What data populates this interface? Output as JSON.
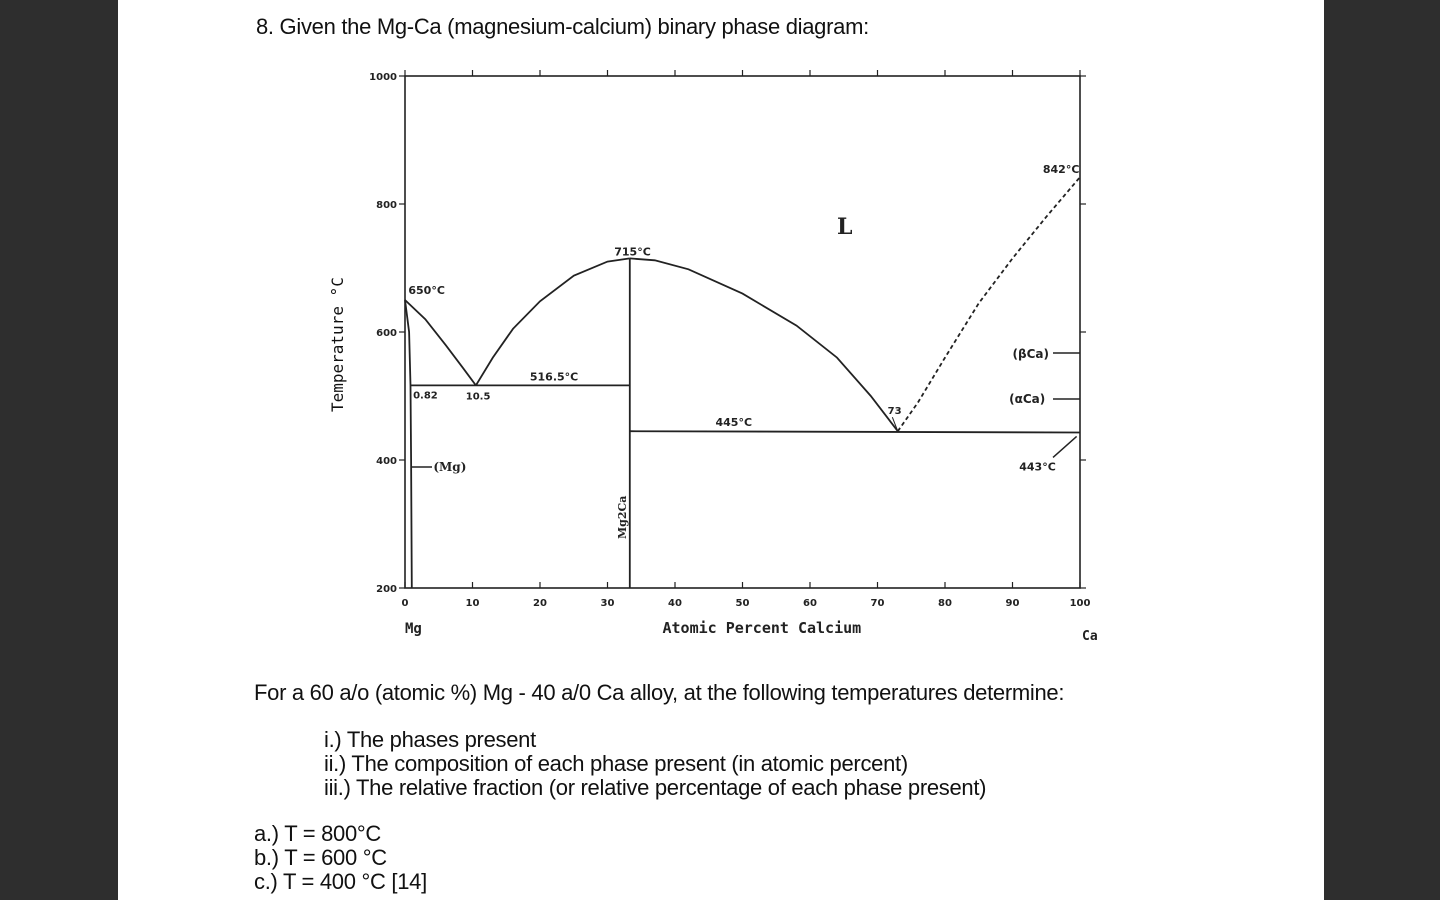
{
  "question": {
    "title": "8. Given the Mg-Ca (magnesium-calcium) binary phase diagram:",
    "prompt": "For a 60 a/o (atomic %) Mg - 40 a/0 Ca alloy, at the following temperatures determine:",
    "subparts": [
      "i.) The phases present",
      "ii.) The composition of each phase present (in atomic percent)",
      "iii.) The relative fraction (or relative percentage of each phase present)"
    ],
    "cases": [
      "a.) T = 800°C",
      "b.) T = 600 °C",
      "c.) T =  400 °C [14]"
    ]
  },
  "chart_data": {
    "type": "line",
    "xlabel": "Atomic Percent Calcium",
    "ylabel": "Temperature °C",
    "xlim": [
      0,
      100
    ],
    "ylim": [
      200,
      1000
    ],
    "xticks": [
      "0",
      "10",
      "20",
      "30",
      "40",
      "50",
      "60",
      "70",
      "80",
      "90",
      "100"
    ],
    "yticks": [
      "200",
      "400",
      "600",
      "800",
      "1000"
    ],
    "end_labels": {
      "left": "Mg",
      "right": "Ca"
    },
    "series": [
      {
        "id": "liquidus-mg",
        "style": "solid",
        "points": [
          [
            0,
            650
          ],
          [
            3,
            620
          ],
          [
            6,
            580
          ],
          [
            8.5,
            545
          ],
          [
            10.5,
            516.5
          ]
        ]
      },
      {
        "id": "liquidus-mg2ca-left",
        "style": "solid",
        "points": [
          [
            10.5,
            516.5
          ],
          [
            13,
            560
          ],
          [
            16,
            605
          ],
          [
            20,
            648
          ],
          [
            25,
            688
          ],
          [
            30,
            710
          ],
          [
            33.3,
            715
          ]
        ]
      },
      {
        "id": "liquidus-mg2ca-right",
        "style": "solid",
        "points": [
          [
            33.3,
            715
          ],
          [
            37,
            712
          ],
          [
            42,
            698
          ],
          [
            50,
            660
          ],
          [
            58,
            610
          ],
          [
            64,
            560
          ],
          [
            69,
            500
          ],
          [
            73,
            445
          ]
        ]
      },
      {
        "id": "liquidus-ca",
        "style": "dashed",
        "points": [
          [
            73,
            445
          ],
          [
            76,
            490
          ],
          [
            80,
            560
          ],
          [
            85,
            645
          ],
          [
            90,
            715
          ],
          [
            95,
            780
          ],
          [
            100,
            842
          ]
        ]
      },
      {
        "id": "mg2ca-line",
        "style": "solid",
        "points": [
          [
            33.3,
            200
          ],
          [
            33.3,
            715
          ]
        ]
      },
      {
        "id": "eutectic-516",
        "style": "solid",
        "points": [
          [
            0.82,
            516.5
          ],
          [
            33.3,
            516.5
          ]
        ]
      },
      {
        "id": "eutectic-445",
        "style": "solid",
        "points": [
          [
            33.3,
            445
          ],
          [
            100,
            443
          ]
        ]
      },
      {
        "id": "mg-solvus",
        "style": "solid",
        "points": [
          [
            0,
            650
          ],
          [
            0.6,
            600
          ],
          [
            0.82,
            516.5
          ],
          [
            0.9,
            400
          ],
          [
            1,
            200
          ]
        ]
      }
    ],
    "annotations": [
      "650°C",
      "715°C",
      "516.5°C",
      "0.82",
      "10.5",
      "445°C",
      "73",
      "842°C",
      "443°C",
      "L",
      "(βCa)",
      "(αCa)",
      "(Mg)",
      "Mg2Ca"
    ]
  }
}
